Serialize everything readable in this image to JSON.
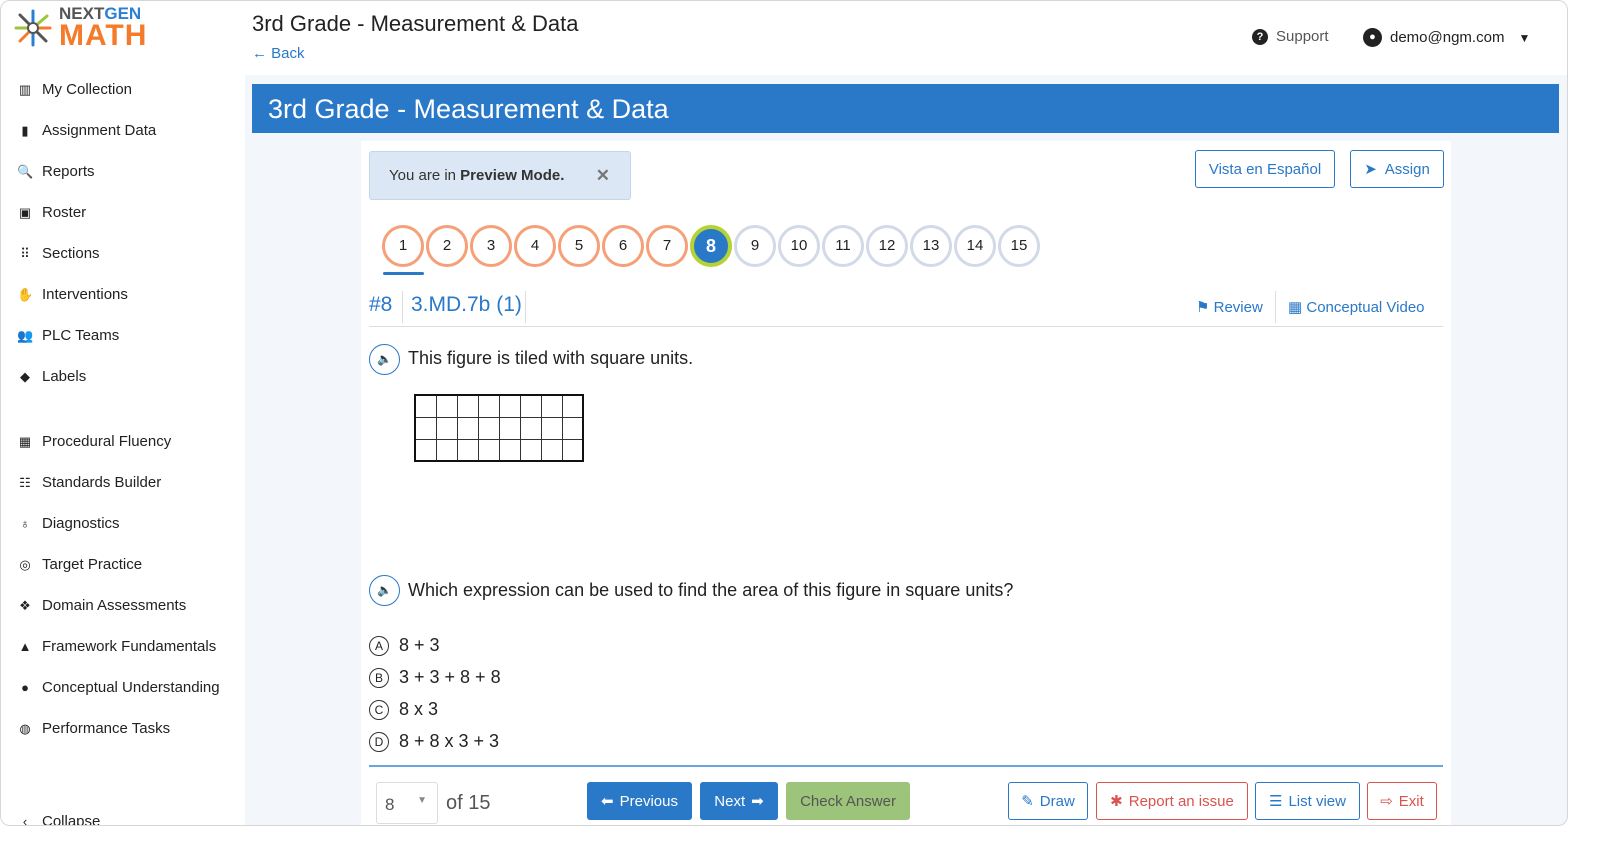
{
  "logo": {
    "line1a": "NEXT",
    "line1b": "GEN",
    "line2": "MATH"
  },
  "sidebar": {
    "items": [
      {
        "label": "My Collection",
        "icon": "books-icon"
      },
      {
        "label": "Assignment Data",
        "icon": "bar-chart-icon"
      },
      {
        "label": "Reports",
        "icon": "search-report-icon"
      },
      {
        "label": "Roster",
        "icon": "address-book-icon"
      },
      {
        "label": "Sections",
        "icon": "users-grid-icon"
      },
      {
        "label": "Interventions",
        "icon": "hand-holding-icon"
      },
      {
        "label": "PLC Teams",
        "icon": "users-icon"
      },
      {
        "label": "Labels",
        "icon": "tag-icon"
      },
      {
        "label": "Procedural Fluency",
        "icon": "grid-icon"
      },
      {
        "label": "Standards Builder",
        "icon": "list-tree-icon"
      },
      {
        "label": "Diagnostics",
        "icon": "stethoscope-icon"
      },
      {
        "label": "Target Practice",
        "icon": "target-icon"
      },
      {
        "label": "Domain Assessments",
        "icon": "cubes-icon"
      },
      {
        "label": "Framework Fundamentals",
        "icon": "shapes-icon"
      },
      {
        "label": "Conceptual Understanding",
        "icon": "brain-icon"
      },
      {
        "label": "Performance Tasks",
        "icon": "globe-icon"
      }
    ],
    "collapse": "Collapse"
  },
  "header": {
    "title": "3rd Grade - Measurement & Data",
    "back": "Back",
    "support": "Support",
    "user": "demo@ngm.com"
  },
  "banner": {
    "title": "3rd Grade - Measurement & Data"
  },
  "preview": {
    "prefix": "You are in ",
    "bold": "Preview Mode."
  },
  "buttons": {
    "spanish": "Vista en Español",
    "assign": "Assign"
  },
  "questions": {
    "items": [
      "1",
      "2",
      "3",
      "4",
      "5",
      "6",
      "7",
      "8",
      "9",
      "10",
      "11",
      "12",
      "13",
      "14",
      "15"
    ],
    "answered": 7,
    "current": "8"
  },
  "question": {
    "number": "#8",
    "standard": "3.MD.7b (1)",
    "review": "Review",
    "video": "Conceptual Video",
    "prompt1": "This figure is tiled with square units.",
    "grid": {
      "columns": 8,
      "rows": 3
    },
    "prompt2": "Which expression can be used to find the area of this figure in square units?",
    "choices": [
      {
        "letter": "A",
        "text": "8 + 3"
      },
      {
        "letter": "B",
        "text": "3 + 3 + 8 + 8"
      },
      {
        "letter": "C",
        "text": "8 x 3"
      },
      {
        "letter": "D",
        "text": "8 + 8 x 3 + 3"
      }
    ]
  },
  "footer": {
    "page": "8",
    "of": "of 15",
    "previous": "Previous",
    "next": "Next",
    "check": "Check Answer",
    "draw": "Draw",
    "report": "Report an issue",
    "list": "List view",
    "exit": "Exit"
  },
  "colors": {
    "primary": "#2a78c8",
    "answered": "#f5a078",
    "current_ring": "#b5d335",
    "danger": "#d9534f"
  }
}
